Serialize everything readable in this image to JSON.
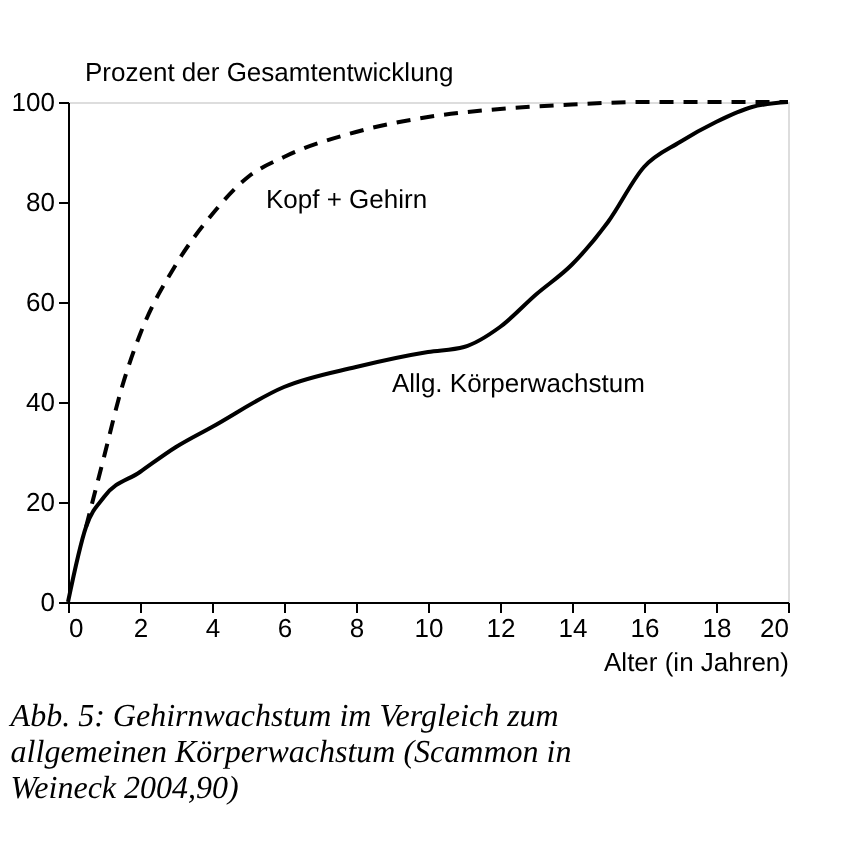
{
  "chart_data": {
    "type": "line",
    "ylabel": "Prozent der Gesamtentwicklung",
    "xlabel": "Alter (in Jahren)",
    "xlim": [
      0,
      20
    ],
    "xticks": [
      0,
      2,
      4,
      6,
      8,
      10,
      12,
      14,
      16,
      18,
      20
    ],
    "ylim": [
      0,
      100
    ],
    "yticks": [
      0,
      20,
      40,
      60,
      80,
      100
    ],
    "grid": false,
    "legend": false,
    "series": [
      {
        "name": "Kopf + Gehirn",
        "color": "#000000",
        "line_style": "dashed",
        "x": [
          0.5,
          1,
          1.5,
          2,
          3,
          4,
          5,
          6,
          8,
          10,
          12,
          14,
          16,
          20
        ],
        "values": [
          15,
          29,
          43,
          53.5,
          67.5,
          77.5,
          85,
          89,
          94,
          97,
          98.6,
          99.5,
          100,
          100
        ]
      },
      {
        "name": "Allg. Körperwachstum",
        "color": "#000000",
        "line_style": "solid",
        "x": [
          0,
          0.5,
          1,
          2,
          3,
          4,
          6,
          8,
          10,
          11,
          12,
          13,
          14,
          15,
          16,
          17,
          18,
          19,
          20
        ],
        "values": [
          0,
          15,
          21,
          26,
          31,
          35,
          43,
          47,
          50,
          51,
          55,
          61.5,
          67.5,
          76,
          87,
          92,
          96,
          99,
          100
        ]
      }
    ],
    "annotations": [
      "Abb. 5: Gehirnwachstum im Vergleich zum allgemeinen Körperwachstum (Scammon in Weineck 2004,90)"
    ]
  }
}
